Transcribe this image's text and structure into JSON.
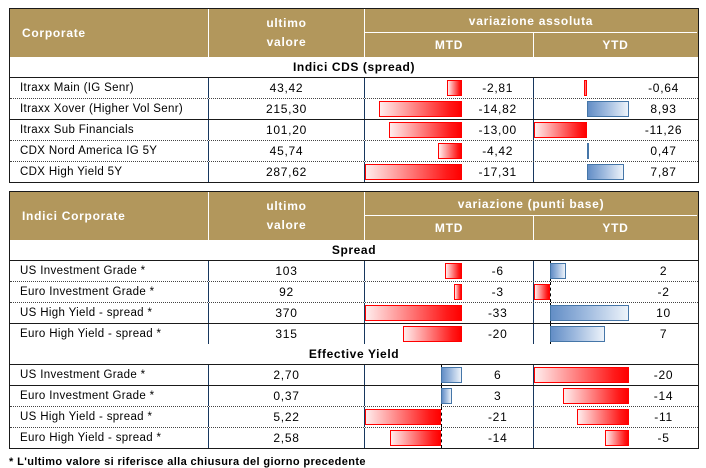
{
  "colors": {
    "header_bg": "#B2975C",
    "header_text": "#FFFFFF",
    "grid_blue": "#17375E",
    "bar_negative": "#FF0000",
    "bar_positive": "#638EC6",
    "bar_positive_border": "#4576A8"
  },
  "footnote": "* L'ultimo valore si riferisce alla chiusura del giorno precedente",
  "tables": [
    {
      "header": {
        "title": "Corporate",
        "value_line1": "ultimo",
        "value_line2": "valore",
        "group": "variazione assoluta",
        "col_mtd": "MTD",
        "col_ytd": "YTD"
      },
      "sections": [
        {
          "title": "Indici CDS (spread)",
          "axis_line": {
            "mtd": false,
            "ytd": false
          },
          "rows": [
            {
              "label": "Itraxx Main (IG Senr)",
              "value": "43,42",
              "mtd": {
                "v": -2.81,
                "text": "-2,81"
              },
              "ytd": {
                "v": -0.64,
                "text": "-0,64"
              },
              "sep": "dotted"
            },
            {
              "label": "Itraxx Xover (Higher Vol Senr)",
              "value": "215,30",
              "mtd": {
                "v": -14.82,
                "text": "-14,82"
              },
              "ytd": {
                "v": 8.93,
                "text": "8,93"
              },
              "sep": "solid"
            },
            {
              "label": "Itraxx Sub Financials",
              "value": "101,20",
              "mtd": {
                "v": -13.0,
                "text": "-13,00"
              },
              "ytd": {
                "v": -11.26,
                "text": "-11,26"
              },
              "sep": "dotted"
            },
            {
              "label": "CDX Nord America IG 5Y",
              "value": "45,74",
              "mtd": {
                "v": -4.42,
                "text": "-4,42"
              },
              "ytd": {
                "v": 0.47,
                "text": "0,47"
              },
              "sep": "dotted"
            },
            {
              "label": "CDX High Yield 5Y",
              "value": "287,62",
              "mtd": {
                "v": -17.31,
                "text": "-17,31"
              },
              "ytd": {
                "v": 7.87,
                "text": "7,87"
              },
              "sep": "none"
            }
          ]
        }
      ]
    },
    {
      "header": {
        "title": "Indici Corporate",
        "value_line1": "ultimo",
        "value_line2": "valore",
        "group": "variazione (punti base)",
        "col_mtd": "MTD",
        "col_ytd": "YTD"
      },
      "sections": [
        {
          "title": "Spread",
          "axis_line": {
            "mtd": false,
            "ytd": true
          },
          "rows": [
            {
              "label": "US Investment Grade *",
              "value": "103",
              "mtd": {
                "v": -6,
                "text": "-6"
              },
              "ytd": {
                "v": 2,
                "text": "2"
              },
              "sep": "dotted"
            },
            {
              "label": "Euro Investment Grade *",
              "value": "92",
              "mtd": {
                "v": -3,
                "text": "-3"
              },
              "ytd": {
                "v": -2,
                "text": "-2"
              },
              "sep": "dotted"
            },
            {
              "label": "US High Yield - spread *",
              "value": "370",
              "mtd": {
                "v": -33,
                "text": "-33"
              },
              "ytd": {
                "v": 10,
                "text": "10"
              },
              "sep": "solid"
            },
            {
              "label": "Euro High Yield - spread *",
              "value": "315",
              "mtd": {
                "v": -20,
                "text": "-20"
              },
              "ytd": {
                "v": 7,
                "text": "7"
              },
              "sep": "none"
            }
          ]
        },
        {
          "title": "Effective Yield",
          "axis_line": {
            "mtd": true,
            "ytd": false
          },
          "rows": [
            {
              "label": "US Investment Grade *",
              "value": "2,70",
              "mtd": {
                "v": 6,
                "text": "6"
              },
              "ytd": {
                "v": -20,
                "text": "-20"
              },
              "sep": "solid"
            },
            {
              "label": "Euro Investment Grade *",
              "value": "0,37",
              "mtd": {
                "v": 3,
                "text": "3"
              },
              "ytd": {
                "v": -14,
                "text": "-14"
              },
              "sep": "dotted"
            },
            {
              "label": "US High Yield - spread *",
              "value": "5,22",
              "mtd": {
                "v": -21,
                "text": "-21"
              },
              "ytd": {
                "v": -11,
                "text": "-11"
              },
              "sep": "dotted"
            },
            {
              "label": "Euro High Yield - spread *",
              "value": "2,58",
              "mtd": {
                "v": -14,
                "text": "-14"
              },
              "ytd": {
                "v": -5,
                "text": "-5"
              },
              "sep": "none"
            }
          ]
        }
      ]
    }
  ],
  "chart_data": [
    {
      "type": "bar",
      "title": "Indici CDS (spread) - variazione assoluta",
      "categories": [
        "Itraxx Main (IG Senr)",
        "Itraxx Xover (Higher Vol Senr)",
        "Itraxx Sub Financials",
        "CDX Nord America IG 5Y",
        "CDX High Yield 5Y"
      ],
      "series": [
        {
          "name": "ultimo valore",
          "values": [
            43.42,
            215.3,
            101.2,
            45.74,
            287.62
          ]
        },
        {
          "name": "MTD",
          "values": [
            -2.81,
            -14.82,
            -13.0,
            -4.42,
            -17.31
          ]
        },
        {
          "name": "YTD",
          "values": [
            -0.64,
            8.93,
            -11.26,
            0.47,
            7.87
          ]
        }
      ],
      "legend_position": "table-columns",
      "grid": false,
      "note": "in-cell data bars; red = negative, blue = positive"
    },
    {
      "type": "bar",
      "title": "Indici Corporate - variazione (punti base) - Spread",
      "categories": [
        "US Investment Grade *",
        "Euro Investment Grade *",
        "US High Yield - spread *",
        "Euro High Yield - spread *"
      ],
      "series": [
        {
          "name": "ultimo valore",
          "values": [
            103,
            92,
            370,
            315
          ]
        },
        {
          "name": "MTD",
          "values": [
            -6,
            -3,
            -33,
            -20
          ]
        },
        {
          "name": "YTD",
          "values": [
            2,
            -2,
            10,
            7
          ]
        }
      ],
      "legend_position": "table-columns",
      "grid": false
    },
    {
      "type": "bar",
      "title": "Indici Corporate - variazione (punti base) - Effective Yield",
      "categories": [
        "US Investment Grade *",
        "Euro Investment Grade *",
        "US High Yield - spread *",
        "Euro High Yield - spread *"
      ],
      "series": [
        {
          "name": "ultimo valore",
          "values": [
            2.7,
            0.37,
            5.22,
            2.58
          ]
        },
        {
          "name": "MTD",
          "values": [
            6,
            3,
            -21,
            -14
          ]
        },
        {
          "name": "YTD",
          "values": [
            -20,
            -14,
            -11,
            -5
          ]
        }
      ],
      "legend_position": "table-columns",
      "grid": false
    }
  ]
}
